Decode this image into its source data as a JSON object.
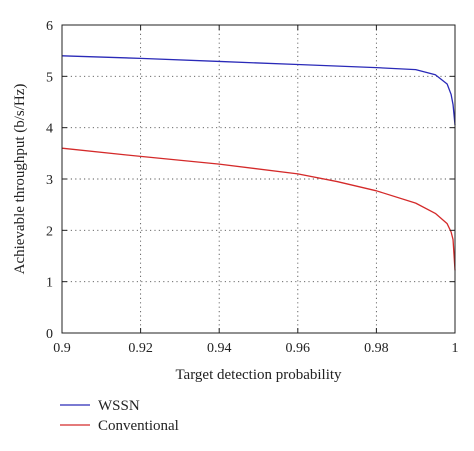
{
  "chart_data": {
    "type": "line",
    "xlabel": "Target detection probability",
    "ylabel": "Achievable throughput (b/s/Hz)",
    "xlim": [
      0.9,
      1.0
    ],
    "ylim": [
      0,
      6
    ],
    "xticks": [
      0.9,
      0.92,
      0.94,
      0.96,
      0.98,
      1.0
    ],
    "xtick_labels": [
      "0.9",
      "0.92",
      "0.94",
      "0.96",
      "0.98",
      "1"
    ],
    "yticks": [
      0,
      1,
      2,
      3,
      4,
      5,
      6
    ],
    "ytick_labels": [
      "0",
      "1",
      "2",
      "3",
      "4",
      "5",
      "6"
    ],
    "grid": true,
    "legend_position": "below-left",
    "series": [
      {
        "name": "WSSN",
        "color": "#2a2ab8",
        "x": [
          0.9,
          0.92,
          0.94,
          0.96,
          0.98,
          0.99,
          0.995,
          0.998,
          0.999,
          0.9995,
          1.0
        ],
        "y": [
          5.4,
          5.35,
          5.29,
          5.23,
          5.17,
          5.13,
          5.03,
          4.85,
          4.65,
          4.45,
          4.05
        ]
      },
      {
        "name": "Conventional",
        "color": "#d42a2a",
        "x": [
          0.9,
          0.92,
          0.94,
          0.96,
          0.97,
          0.98,
          0.99,
          0.995,
          0.998,
          0.999,
          0.9995,
          1.0
        ],
        "y": [
          3.6,
          3.44,
          3.29,
          3.1,
          2.95,
          2.77,
          2.53,
          2.33,
          2.13,
          1.97,
          1.82,
          1.22
        ]
      }
    ]
  }
}
